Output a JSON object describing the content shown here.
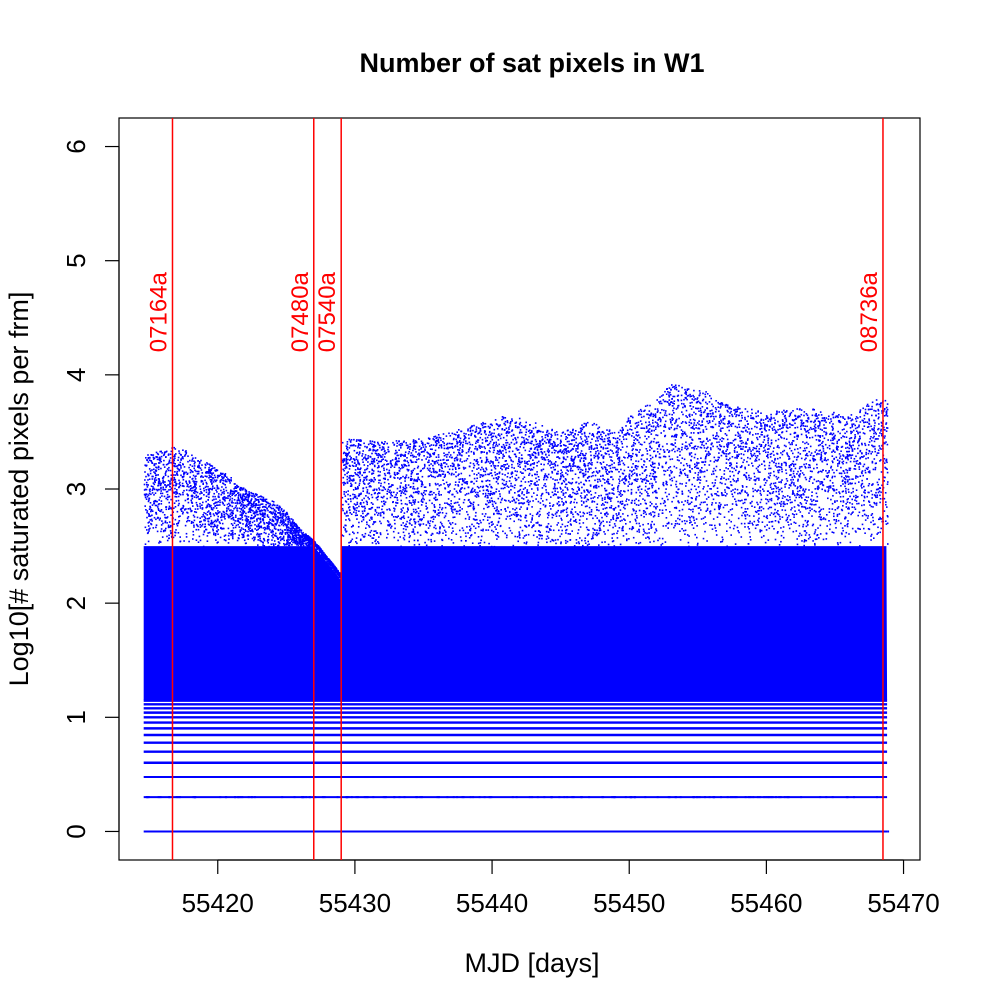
{
  "chart_data": {
    "type": "scatter",
    "title": "Number of sat pixels in W1",
    "xlabel": "MJD [days]",
    "ylabel": "Log10[# saturated pixels per frm]",
    "xlim": [
      55412.8,
      55471.2
    ],
    "ylim": [
      -0.25,
      6.25
    ],
    "x_ticks": [
      55420,
      55430,
      55440,
      55450,
      55460,
      55470
    ],
    "y_ticks": [
      0,
      1,
      2,
      3,
      4,
      5,
      6
    ],
    "grid": false,
    "point_color": "#0000ff",
    "marker_color": "#ff0000",
    "x_data_range": [
      55414.6,
      55468.8
    ],
    "discrete_levels": [
      0,
      0.301,
      0.477,
      0.602,
      0.699,
      0.778,
      0.845,
      0.903,
      0.954,
      1.0,
      1.041,
      1.079,
      1.114,
      1.146
    ],
    "dense_band": {
      "low": 1.15,
      "high": 2.5
    },
    "upper_envelope": [
      [
        55414.6,
        3.3
      ],
      [
        55416,
        3.35
      ],
      [
        55417,
        3.38
      ],
      [
        55418,
        3.33
      ],
      [
        55419,
        3.25
      ],
      [
        55420,
        3.18
      ],
      [
        55421,
        3.1
      ],
      [
        55422,
        3.0
      ],
      [
        55423,
        2.95
      ],
      [
        55424,
        2.9
      ],
      [
        55425,
        2.8
      ],
      [
        55426,
        2.65
      ],
      [
        55427,
        2.55
      ],
      [
        55428,
        2.4
      ],
      [
        55429,
        2.25
      ],
      [
        55429.05,
        3.45
      ],
      [
        55432,
        3.42
      ],
      [
        55435,
        3.45
      ],
      [
        55438,
        3.55
      ],
      [
        55441,
        3.65
      ],
      [
        55443,
        3.6
      ],
      [
        55445,
        3.5
      ],
      [
        55447,
        3.6
      ],
      [
        55449,
        3.5
      ],
      [
        55450,
        3.65
      ],
      [
        55452,
        3.8
      ],
      [
        55453,
        3.92
      ],
      [
        55455,
        3.9
      ],
      [
        55457,
        3.75
      ],
      [
        55460,
        3.68
      ],
      [
        55463,
        3.72
      ],
      [
        55466,
        3.65
      ],
      [
        55468,
        3.8
      ],
      [
        55468.8,
        3.78
      ]
    ],
    "markers": [
      {
        "x": 55416.7,
        "label": "07164a"
      },
      {
        "x": 55427.0,
        "label": "07480a"
      },
      {
        "x": 55429.0,
        "label": "07540a"
      },
      {
        "x": 55468.5,
        "label": "08736a"
      }
    ],
    "marker_label_y": 4.9
  }
}
